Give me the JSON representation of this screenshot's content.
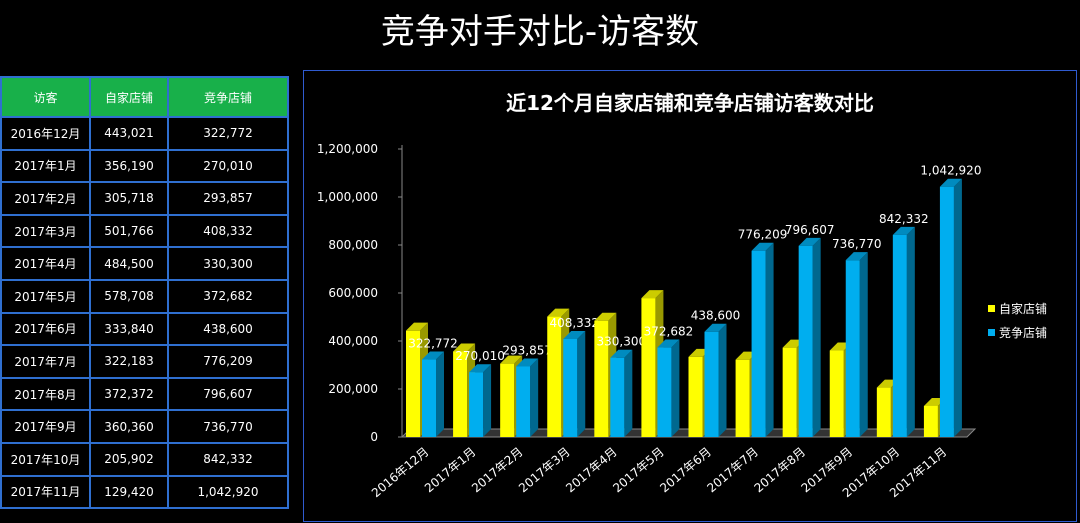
{
  "page_title": "竞争对手对比-访客数",
  "table": {
    "headers": [
      "访客",
      "自家店铺",
      "竞争店铺"
    ],
    "rows": [
      [
        "2016年12月",
        "443,021",
        "322,772"
      ],
      [
        "2017年1月",
        "356,190",
        "270,010"
      ],
      [
        "2017年2月",
        "305,718",
        "293,857"
      ],
      [
        "2017年3月",
        "501,766",
        "408,332"
      ],
      [
        "2017年4月",
        "484,500",
        "330,300"
      ],
      [
        "2017年5月",
        "578,708",
        "372,682"
      ],
      [
        "2017年6月",
        "333,840",
        "438,600"
      ],
      [
        "2017年7月",
        "322,183",
        "776,209"
      ],
      [
        "2017年8月",
        "372,372",
        "796,607"
      ],
      [
        "2017年9月",
        "360,360",
        "736,770"
      ],
      [
        "2017年10月",
        "205,902",
        "842,332"
      ],
      [
        "2017年11月",
        "129,420",
        "1,042,920"
      ]
    ]
  },
  "colors": {
    "series1": "#ffff00",
    "series2": "#00aeef",
    "header_bg": "#18b04a",
    "border": "#2f6fd0"
  },
  "chart_data": {
    "type": "bar",
    "title": "近12个月自家店铺和竞争店铺访客数对比",
    "categories": [
      "2016年12月",
      "2017年1月",
      "2017年2月",
      "2017年3月",
      "2017年4月",
      "2017年5月",
      "2017年6月",
      "2017年7月",
      "2017年8月",
      "2017年9月",
      "2017年10月",
      "2017年11月"
    ],
    "series": [
      {
        "name": "自家店铺",
        "values": [
          443021,
          356190,
          305718,
          501766,
          484500,
          578708,
          333840,
          322183,
          372372,
          360360,
          205902,
          129420
        ]
      },
      {
        "name": "竞争店铺",
        "values": [
          322772,
          270010,
          293857,
          408332,
          330300,
          372682,
          438600,
          776209,
          796607,
          736770,
          842332,
          1042920
        ]
      }
    ],
    "data_labels": [
      "322,772",
      "270,010",
      "293,857",
      "408,332",
      "330,300",
      "372,682",
      "438,600",
      "776,209",
      "796,607",
      "736,770",
      "842,332",
      "1,042,920"
    ],
    "ylim": [
      0,
      1200000
    ],
    "y_ticks": [
      "0",
      "200,000",
      "400,000",
      "600,000",
      "800,000",
      "1,000,000",
      "1,200,000"
    ],
    "legend_position": "right",
    "grid": false,
    "style": "3d-column"
  }
}
